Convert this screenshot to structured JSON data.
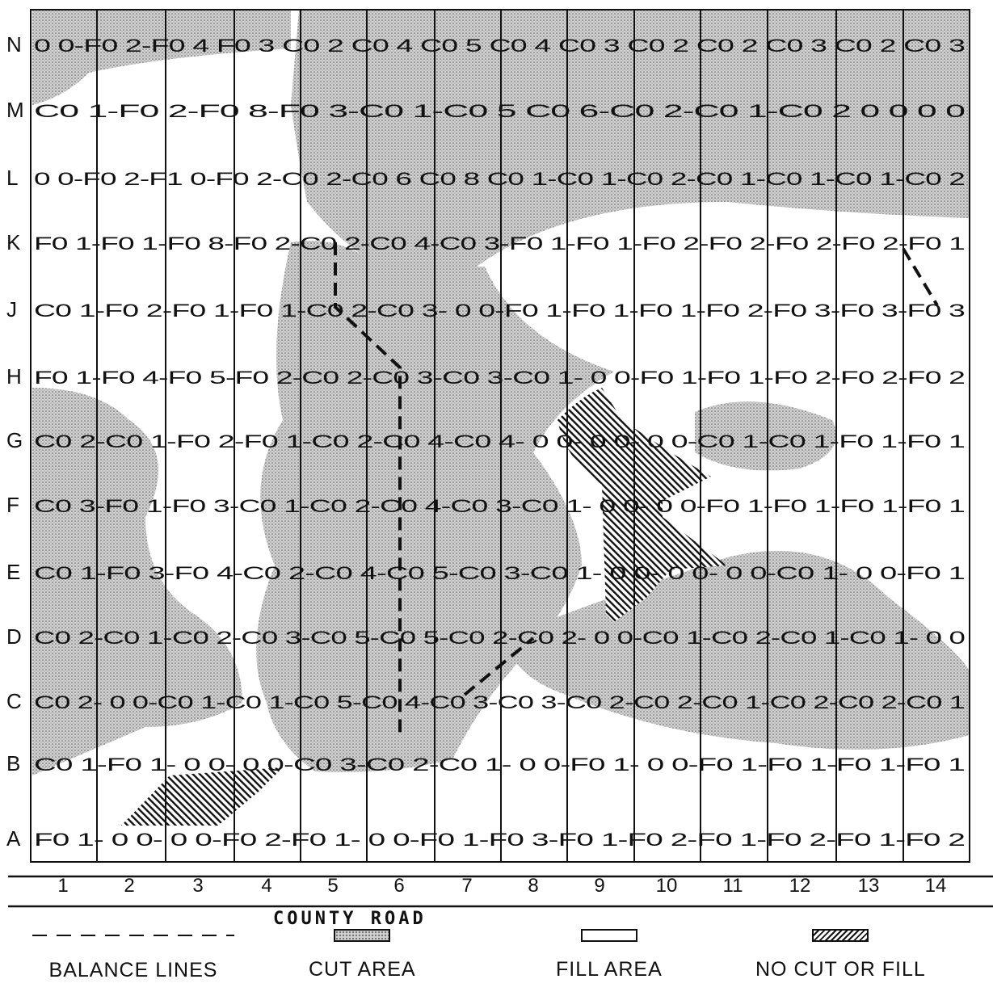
{
  "rows": [
    "N",
    "M",
    "L",
    "K",
    "J",
    "H",
    "G",
    "F",
    "E",
    "D",
    "C",
    "B",
    "A"
  ],
  "columns": [
    "1",
    "2",
    "3",
    "4",
    "5",
    "6",
    "7",
    "8",
    "9",
    "10",
    "11",
    "12",
    "13",
    "14"
  ],
  "cells": {
    "N": [
      "0",
      "0-F0",
      "2-F0",
      "4 F0",
      "3 C0",
      "2 C0",
      "4 C0",
      "5 C0",
      "4 C0",
      "3 C0",
      "2 C0",
      "2 C0",
      "3 C0",
      "2 C0",
      "3"
    ],
    "M": [
      "C0",
      "1-F0",
      "2-F0",
      "8-F0",
      "3-C0",
      "1-C0",
      "5 C0",
      "6-C0",
      "2-C0",
      "1-C0",
      "2",
      "0",
      "0",
      "0",
      "0"
    ],
    "L": [
      "0",
      "0-F0",
      "2-F1",
      "0-F0",
      "2-C0",
      "2-C0",
      "6 C0",
      "8 C0",
      "1-C0",
      "1-C0",
      "2-C0",
      "1-C0",
      "1-C0",
      "1-C0",
      "2"
    ],
    "K": [
      "F0",
      "1-F0",
      "1-F0",
      "8-F0",
      "2-C0",
      "2-C0",
      "4-C0",
      "3-F0",
      "1-F0",
      "1-F0",
      "2-F0",
      "2-F0",
      "2-F0",
      "2-F0",
      "1"
    ],
    "J": [
      "C0",
      "1-F0",
      "2-F0",
      "1-F0",
      "1-C0",
      "2-C0",
      "3-",
      "0",
      "0-F0",
      "1-F0",
      "1-F0",
      "1-F0",
      "2-F0",
      "3-F0",
      "3-F0",
      "3"
    ],
    "H": [
      "F0",
      "1-F0",
      "4-F0",
      "5-F0",
      "2-C0",
      "2-C0",
      "3-C0",
      "3-C0",
      "1-",
      "0",
      "0-F0",
      "1-F0",
      "1-F0",
      "2-F0",
      "2-F0",
      "2"
    ],
    "G": [
      "C0",
      "2-C0",
      "1-F0",
      "2-F0",
      "1-C0",
      "2-C0",
      "4-C0",
      "4-",
      "0",
      "0-",
      "0",
      "0-",
      "0",
      "0-C0",
      "1-C0",
      "1-F0",
      "1-F0",
      "1"
    ],
    "F": [
      "C0",
      "3-F0",
      "1-F0",
      "3-C0",
      "1-C0",
      "2-C0",
      "4-C0",
      "3-C0",
      "1-",
      "0",
      "0-",
      "0",
      "0-F0",
      "1-F0",
      "1-F0",
      "1-F0",
      "1"
    ],
    "E": [
      "C0",
      "1-F0",
      "3-F0",
      "4-C0",
      "2-C0",
      "4-C0",
      "5-C0",
      "3-C0",
      "1-",
      "0",
      "0-",
      "0",
      "0-",
      "0",
      "0-C0",
      "1-",
      "0",
      "0-F0",
      "1"
    ],
    "D": [
      "C0",
      "2-C0",
      "1-C0",
      "2-C0",
      "3-C0",
      "5-C0",
      "5-C0",
      "2-C0",
      "2-",
      "0",
      "0-C0",
      "1-C0",
      "2-C0",
      "1-C0",
      "1-",
      "0",
      "0"
    ],
    "C": [
      "C0",
      "2-",
      "0",
      "0-C0",
      "1-C0",
      "1-C0",
      "5-C0",
      "4-C0",
      "3-C0",
      "3-C0",
      "2-C0",
      "2-C0",
      "1-C0",
      "2-C0",
      "2-C0",
      "1"
    ],
    "B": [
      "C0",
      "1-F0",
      "1-",
      "0",
      "0-",
      "0",
      "0-C0",
      "3-C0",
      "2-C0",
      "1-",
      "0",
      "0-F0",
      "1-",
      "0",
      "0-F0",
      "1-F0",
      "1-F0",
      "1-F0",
      "1"
    ],
    "A": [
      "F0",
      "1-",
      "0",
      "0-",
      "0",
      "0-F0",
      "2-F0",
      "1-",
      "0",
      "0-F0",
      "1-F0",
      "3-F0",
      "1-F0",
      "2-F0",
      "1-F0",
      "2-F0",
      "1-F0",
      "2"
    ]
  },
  "road_label": "COUNTY  ROAD",
  "legend": {
    "balance": "BALANCE LINES",
    "cut": "CUT AREA",
    "fill": "FILL AREA",
    "none": "NO CUT OR FILL"
  },
  "colors": {
    "ink": "#111111",
    "cut": "#cfcfcf",
    "fill": "#ffffff"
  }
}
